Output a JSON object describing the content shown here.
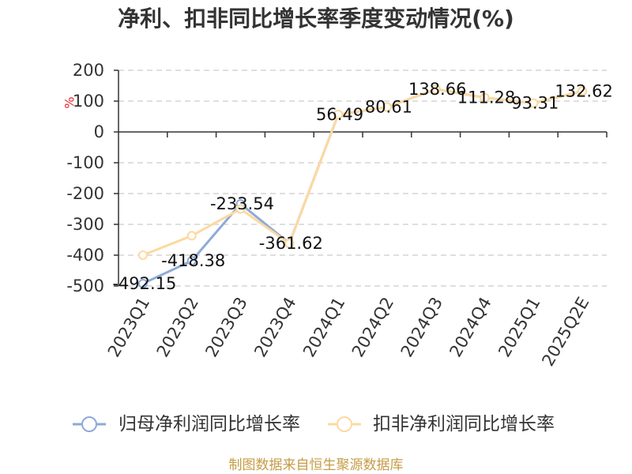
{
  "source": "制图数据来自恒生聚源数据库",
  "colors": {
    "unit_label": "#e8262b",
    "source_text": "#c69c47",
    "grid": "#cccccc",
    "axis": "#333333"
  },
  "chart_data": {
    "type": "line",
    "title": "净利、扣非同比增长率季度变动情况(%)",
    "xlabel": "",
    "ylabel": "%",
    "categories": [
      "2023Q1",
      "2023Q2",
      "2023Q3",
      "2023Q4",
      "2024Q1",
      "2024Q2",
      "2024Q3",
      "2024Q4",
      "2025Q1",
      "2025Q2E"
    ],
    "ylim": [
      -500,
      200
    ],
    "yticks": [
      200,
      100,
      0,
      -100,
      -200,
      -300,
      -400,
      -500
    ],
    "grid": true,
    "legend": "bottom",
    "series": [
      {
        "name": "归母净利润同比增长率",
        "color": "#8eaad7",
        "data_labels": true,
        "values": [
          -492.15,
          -418.38,
          -233.54,
          -361.62,
          56.49,
          80.61,
          138.66,
          111.28,
          93.31,
          132.62
        ]
      },
      {
        "name": "扣非净利润同比增长率",
        "color": "#fdd9a0",
        "data_labels": false,
        "values": [
          -400,
          -337,
          -250,
          -362,
          56.49,
          80.61,
          138.66,
          111.28,
          93.31,
          132.62
        ]
      }
    ]
  }
}
